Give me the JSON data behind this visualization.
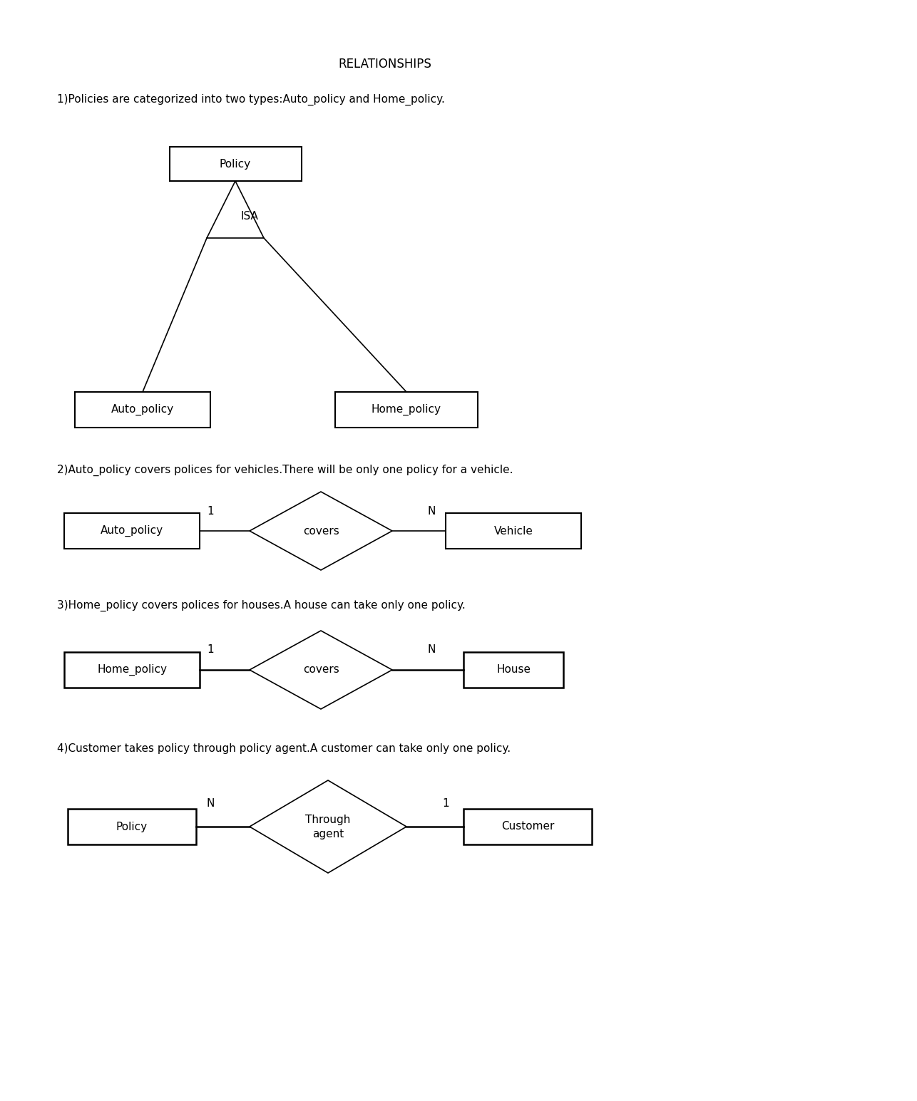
{
  "bg_color": "#ffffff",
  "title": "RELATIONSHIPS",
  "title_fontsize": 12,
  "title_fontweight": "normal",
  "section1_text": "1)Policies are categorized into two types:Auto_policy and Home_policy.",
  "section2_text": "2)Auto_policy covers polices for vehicles.There will be only one policy for a vehicle.",
  "section3_text": "3)Home_policy covers polices for houses.A house can take only one policy.",
  "section4_text": "4)Customer takes policy through policy agent.A customer can take only one policy.",
  "font_size_label": 11,
  "font_size_section": 11,
  "line_color": "#000000",
  "fill_color": "#ffffff"
}
